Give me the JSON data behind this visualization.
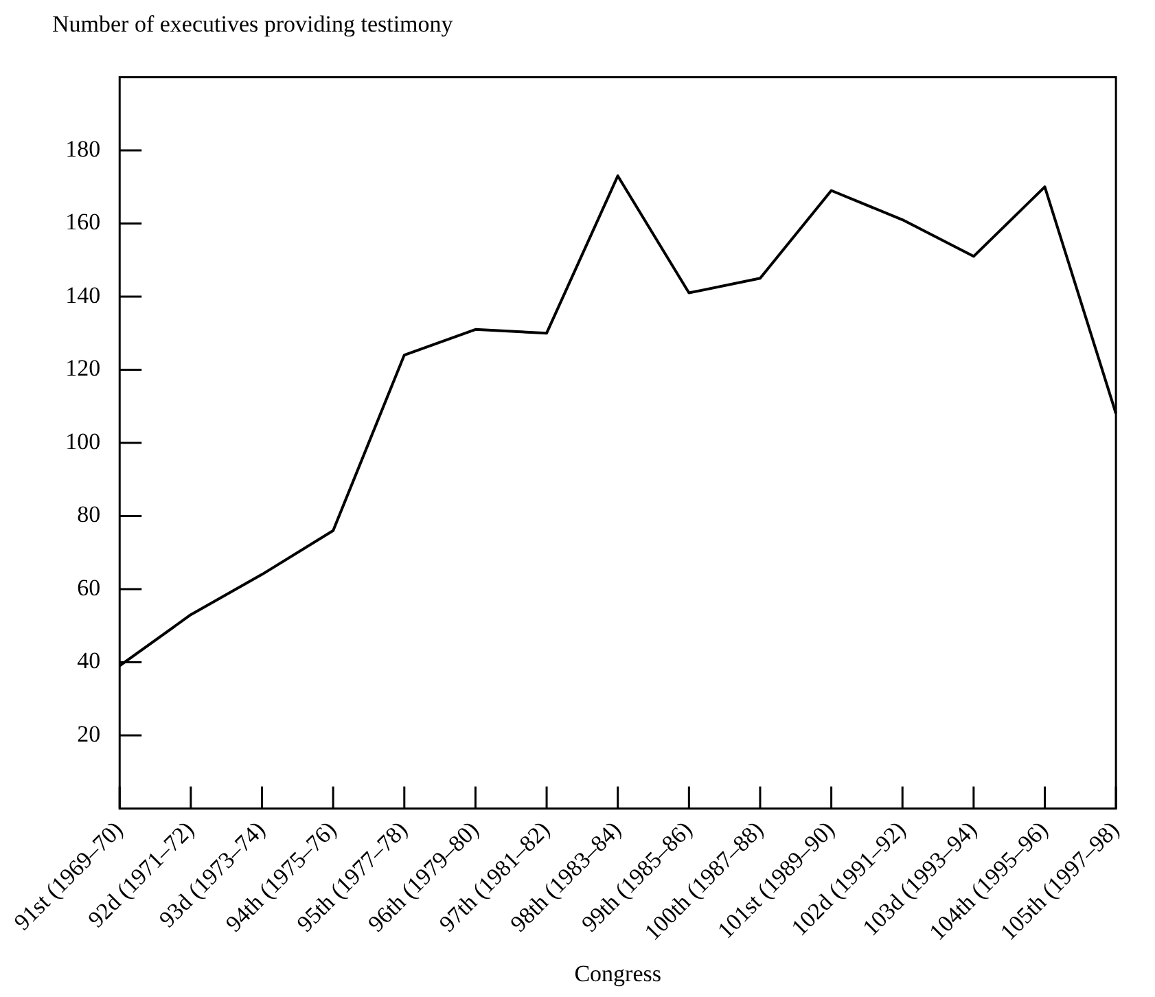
{
  "chart_data": {
    "type": "line",
    "ylabel": "Number of executives providing testimony",
    "xlabel": "Congress",
    "categories": [
      "91st (1969–70)",
      "92d (1971–72)",
      "93d (1973–74)",
      "94th (1975–76)",
      "95th (1977–78)",
      "96th (1979–80)",
      "97th (1981–82)",
      "98th (1983–84)",
      "99th (1985–86)",
      "100th (1987–88)",
      "101st (1989–90)",
      "102d (1991–92)",
      "103d (1993–94)",
      "104th (1995–96)",
      "105th (1997–98)"
    ],
    "series": [
      {
        "color": "#000000",
        "values": [
          39,
          53,
          64,
          76,
          124,
          131,
          130,
          173,
          141,
          145,
          169,
          161,
          151,
          170,
          108
        ]
      }
    ],
    "ylim": [
      0,
      200
    ],
    "yticks": [
      20,
      40,
      60,
      80,
      100,
      120,
      140,
      160,
      180
    ],
    "grid": false,
    "legend": false,
    "marker": "none",
    "line_style": "solid"
  }
}
